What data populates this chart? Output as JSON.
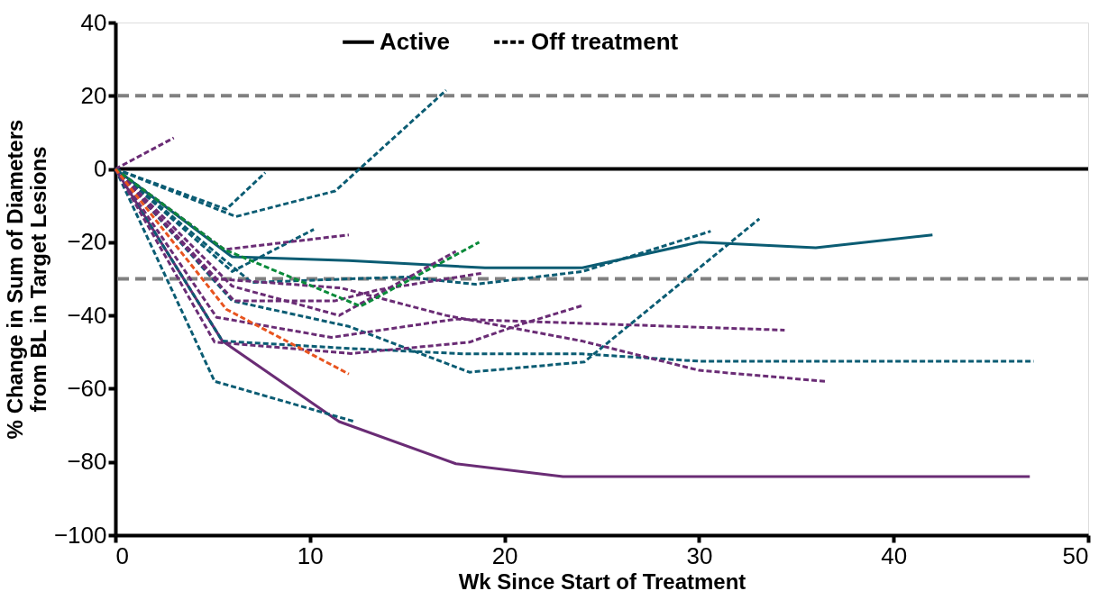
{
  "chart_data": {
    "type": "line",
    "xlabel": "Wk Since Start of Treatment",
    "ylabel": "% Change in Sum of Diameters\nfrom BL in Target Lesions",
    "xlim": [
      0,
      50
    ],
    "xticks": [
      0,
      10,
      20,
      30,
      40,
      50
    ],
    "ylim": [
      -100,
      40
    ],
    "yticks": [
      -100,
      -80,
      -60,
      -40,
      -20,
      0,
      20,
      40
    ],
    "grid": false,
    "marker": "none",
    "annotations": [
      "Active",
      "Off treatment"
    ],
    "ref_lines": [
      {
        "axis": "y",
        "value": 0,
        "color": "#000000",
        "line_style": "solid"
      },
      {
        "axis": "y",
        "value": 20,
        "color": "#808080",
        "line_style": "dashed"
      },
      {
        "axis": "y",
        "value": -30,
        "color": "#808080",
        "line_style": "dashed"
      }
    ],
    "series": [
      {
        "color": "#0b5c73",
        "line_style": "solid",
        "x": [
          0,
          6,
          12,
          19,
          24,
          30,
          36,
          42
        ],
        "values": [
          0,
          -24,
          -25,
          -27,
          -27,
          -20,
          -21.5,
          -18
        ]
      },
      {
        "color": "#6a2c75",
        "line_style": "solid",
        "x": [
          0,
          5.5,
          11.5,
          17.5,
          23,
          47
        ],
        "values": [
          0,
          -47,
          -69,
          -80.5,
          -84,
          -84
        ]
      },
      {
        "color": "#0b5c73",
        "line_style": "dashed",
        "x": [
          0,
          6.2,
          11.3,
          17
        ],
        "values": [
          0,
          -13,
          -6,
          21.5
        ]
      },
      {
        "color": "#0b5c73",
        "line_style": "dashed",
        "x": [
          0,
          5.7,
          7.7
        ],
        "values": [
          0,
          -11,
          -1
        ]
      },
      {
        "color": "#0b5c73",
        "line_style": "dashed",
        "x": [
          0,
          6,
          10.2
        ],
        "values": [
          0,
          -28,
          -16.5
        ]
      },
      {
        "color": "#0b5c73",
        "line_style": "dashed",
        "x": [
          0,
          7,
          12,
          15,
          18.5,
          24,
          30.6
        ],
        "values": [
          0,
          -31,
          -30,
          -29.5,
          -31.5,
          -28,
          -17
        ]
      },
      {
        "color": "#0b5c73",
        "line_style": "dashed",
        "x": [
          0,
          6,
          12,
          18.2,
          24.1,
          33.1
        ],
        "values": [
          0,
          -36,
          -43,
          -55.5,
          -52.7,
          -13.6
        ]
      },
      {
        "color": "#0b5c73",
        "line_style": "dashed",
        "x": [
          0,
          5.5,
          12,
          18,
          24,
          30,
          47.2
        ],
        "values": [
          0,
          -47,
          -49,
          -50.5,
          -50.5,
          -52.5,
          -52.5
        ]
      },
      {
        "color": "#0b5c73",
        "line_style": "dashed",
        "x": [
          0,
          5.1,
          12.3
        ],
        "values": [
          0,
          -58,
          -69
        ]
      },
      {
        "color": "#6a2c75",
        "line_style": "dashed",
        "x": [
          0,
          3
        ],
        "values": [
          0,
          8.5
        ]
      },
      {
        "color": "#6a2c75",
        "line_style": "dashed",
        "x": [
          0,
          5.6,
          12
        ],
        "values": [
          0,
          -22,
          -18
        ]
      },
      {
        "color": "#6a2c75",
        "line_style": "dashed",
        "x": [
          0,
          5.2,
          11.6,
          17,
          24,
          30,
          36.5
        ],
        "values": [
          0,
          -30,
          -32.5,
          -40,
          -47,
          -55,
          -58
        ]
      },
      {
        "color": "#6a2c75",
        "line_style": "dashed",
        "x": [
          0,
          6,
          11.5,
          17.5
        ],
        "values": [
          0,
          -32,
          -40,
          -22.5
        ]
      },
      {
        "color": "#6a2c75",
        "line_style": "dashed",
        "x": [
          0,
          6.1,
          11.3,
          13.5,
          18.8
        ],
        "values": [
          0,
          -36,
          -36,
          -33,
          -28.5
        ]
      },
      {
        "color": "#6a2c75",
        "line_style": "dashed",
        "x": [
          0,
          5.2,
          11.1,
          17.5,
          34.4
        ],
        "values": [
          0,
          -40.5,
          -46,
          -41,
          -44
        ]
      },
      {
        "color": "#6a2c75",
        "line_style": "dashed",
        "x": [
          0,
          5.1,
          12.1,
          18.2,
          20.5,
          24
        ],
        "values": [
          0,
          -47.3,
          -50.4,
          -47.3,
          -43,
          -37.3
        ]
      },
      {
        "color": "#0a8a3a",
        "line_style": "dashed",
        "x": [
          0,
          5.6,
          12.6,
          18.7
        ],
        "values": [
          0,
          -22,
          -37.5,
          -20
        ]
      },
      {
        "color": "#e8541f",
        "line_style": "dashed",
        "x": [
          0,
          5.7,
          12
        ],
        "values": [
          0,
          -38.3,
          -56
        ]
      }
    ]
  }
}
